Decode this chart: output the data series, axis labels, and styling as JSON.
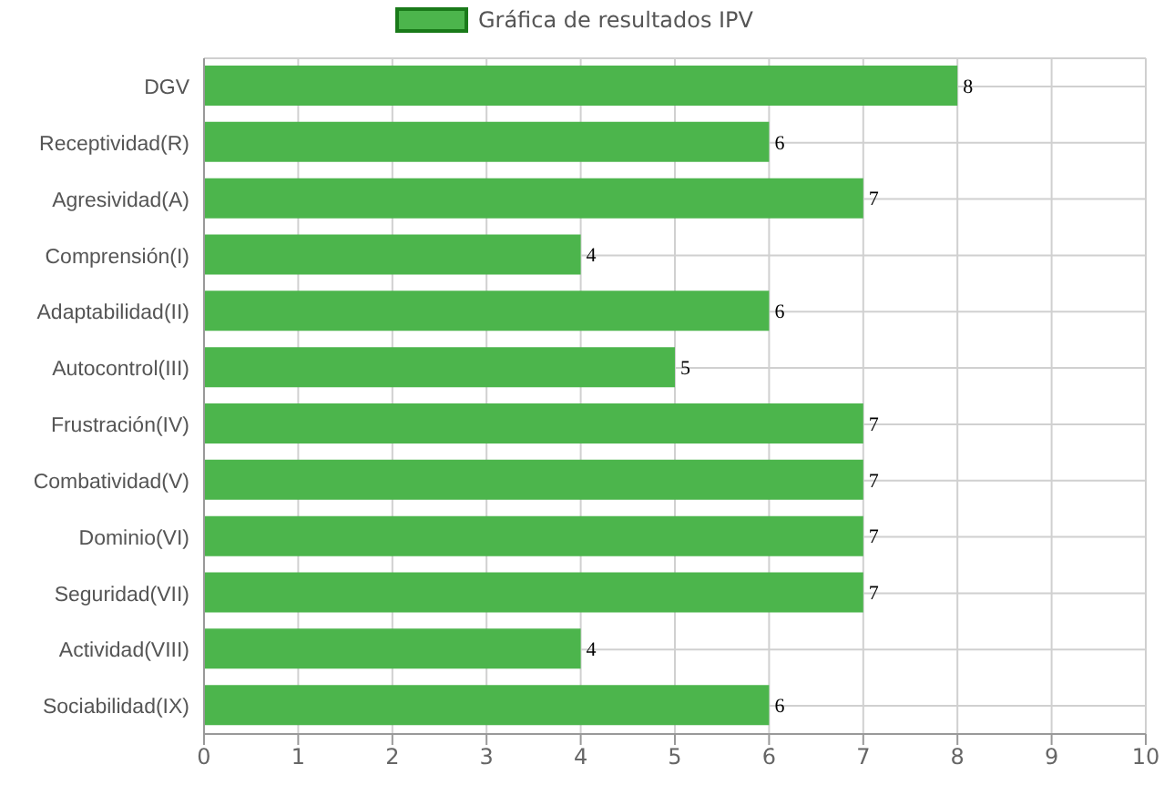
{
  "chart_data": {
    "type": "bar",
    "orientation": "horizontal",
    "categories": [
      "DGV",
      "Receptividad(R)",
      "Agresividad(A)",
      "Comprensión(I)",
      "Adaptabilidad(II)",
      "Autocontrol(III)",
      "Frustración(IV)",
      "Combatividad(V)",
      "Dominio(VI)",
      "Seguridad(VII)",
      "Actividad(VIII)",
      "Sociabilidad(IX)"
    ],
    "series": [
      {
        "name": "Gráfica de resultados IPV",
        "color": "#4cb54c",
        "values": [
          8,
          6,
          7,
          4,
          6,
          5,
          7,
          7,
          7,
          7,
          4,
          6
        ]
      }
    ],
    "xlim": [
      0,
      10
    ],
    "xticks": [
      0,
      1,
      2,
      3,
      4,
      5,
      6,
      7,
      8,
      9,
      10
    ],
    "grid": true,
    "legend": "top",
    "data_labels": true
  }
}
